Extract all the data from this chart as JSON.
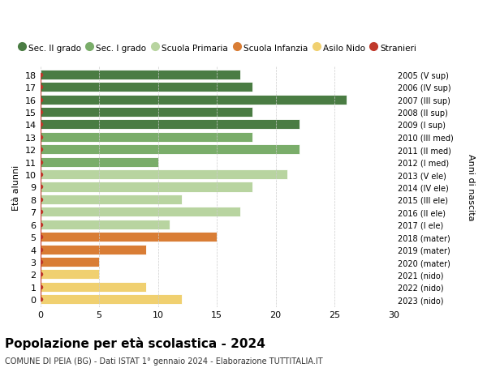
{
  "ages": [
    18,
    17,
    16,
    15,
    14,
    13,
    12,
    11,
    10,
    9,
    8,
    7,
    6,
    5,
    4,
    3,
    2,
    1,
    0
  ],
  "values": [
    17,
    18,
    26,
    18,
    22,
    18,
    22,
    10,
    21,
    18,
    12,
    17,
    11,
    15,
    9,
    5,
    5,
    9,
    12
  ],
  "stranieri_vals": [
    0,
    0,
    0,
    0,
    0,
    1,
    1,
    0,
    0,
    0,
    0,
    0,
    0,
    0,
    0,
    0,
    0,
    0,
    0
  ],
  "bar_colors": [
    "#4a7c43",
    "#4a7c43",
    "#4a7c43",
    "#4a7c43",
    "#4a7c43",
    "#7aad6a",
    "#7aad6a",
    "#7aad6a",
    "#b8d4a0",
    "#b8d4a0",
    "#b8d4a0",
    "#b8d4a0",
    "#b8d4a0",
    "#d97d35",
    "#d97d35",
    "#d97d35",
    "#f0d070",
    "#f0d070",
    "#f0d070"
  ],
  "right_labels": [
    "2005 (V sup)",
    "2006 (IV sup)",
    "2007 (III sup)",
    "2008 (II sup)",
    "2009 (I sup)",
    "2010 (III med)",
    "2011 (II med)",
    "2012 (I med)",
    "2013 (V ele)",
    "2014 (IV ele)",
    "2015 (III ele)",
    "2016 (II ele)",
    "2017 (I ele)",
    "2018 (mater)",
    "2019 (mater)",
    "2020 (mater)",
    "2021 (nido)",
    "2022 (nido)",
    "2023 (nido)"
  ],
  "legend_labels": [
    "Sec. II grado",
    "Sec. I grado",
    "Scuola Primaria",
    "Scuola Infanzia",
    "Asilo Nido",
    "Stranieri"
  ],
  "legend_colors": [
    "#4a7c43",
    "#7aad6a",
    "#b8d4a0",
    "#d97d35",
    "#f0d070",
    "#c0392b"
  ],
  "title": "Popolazione per età scolastica - 2024",
  "subtitle": "COMUNE DI PEIA (BG) - Dati ISTAT 1° gennaio 2024 - Elaborazione TUTTITALIA.IT",
  "ylabel": "Età alunni",
  "right_ylabel": "Anni di nascita",
  "xlim": [
    0,
    30
  ],
  "background_color": "#ffffff",
  "grid_color": "#cccccc",
  "stranieri_color": "#c0392b",
  "bar_height": 0.78
}
